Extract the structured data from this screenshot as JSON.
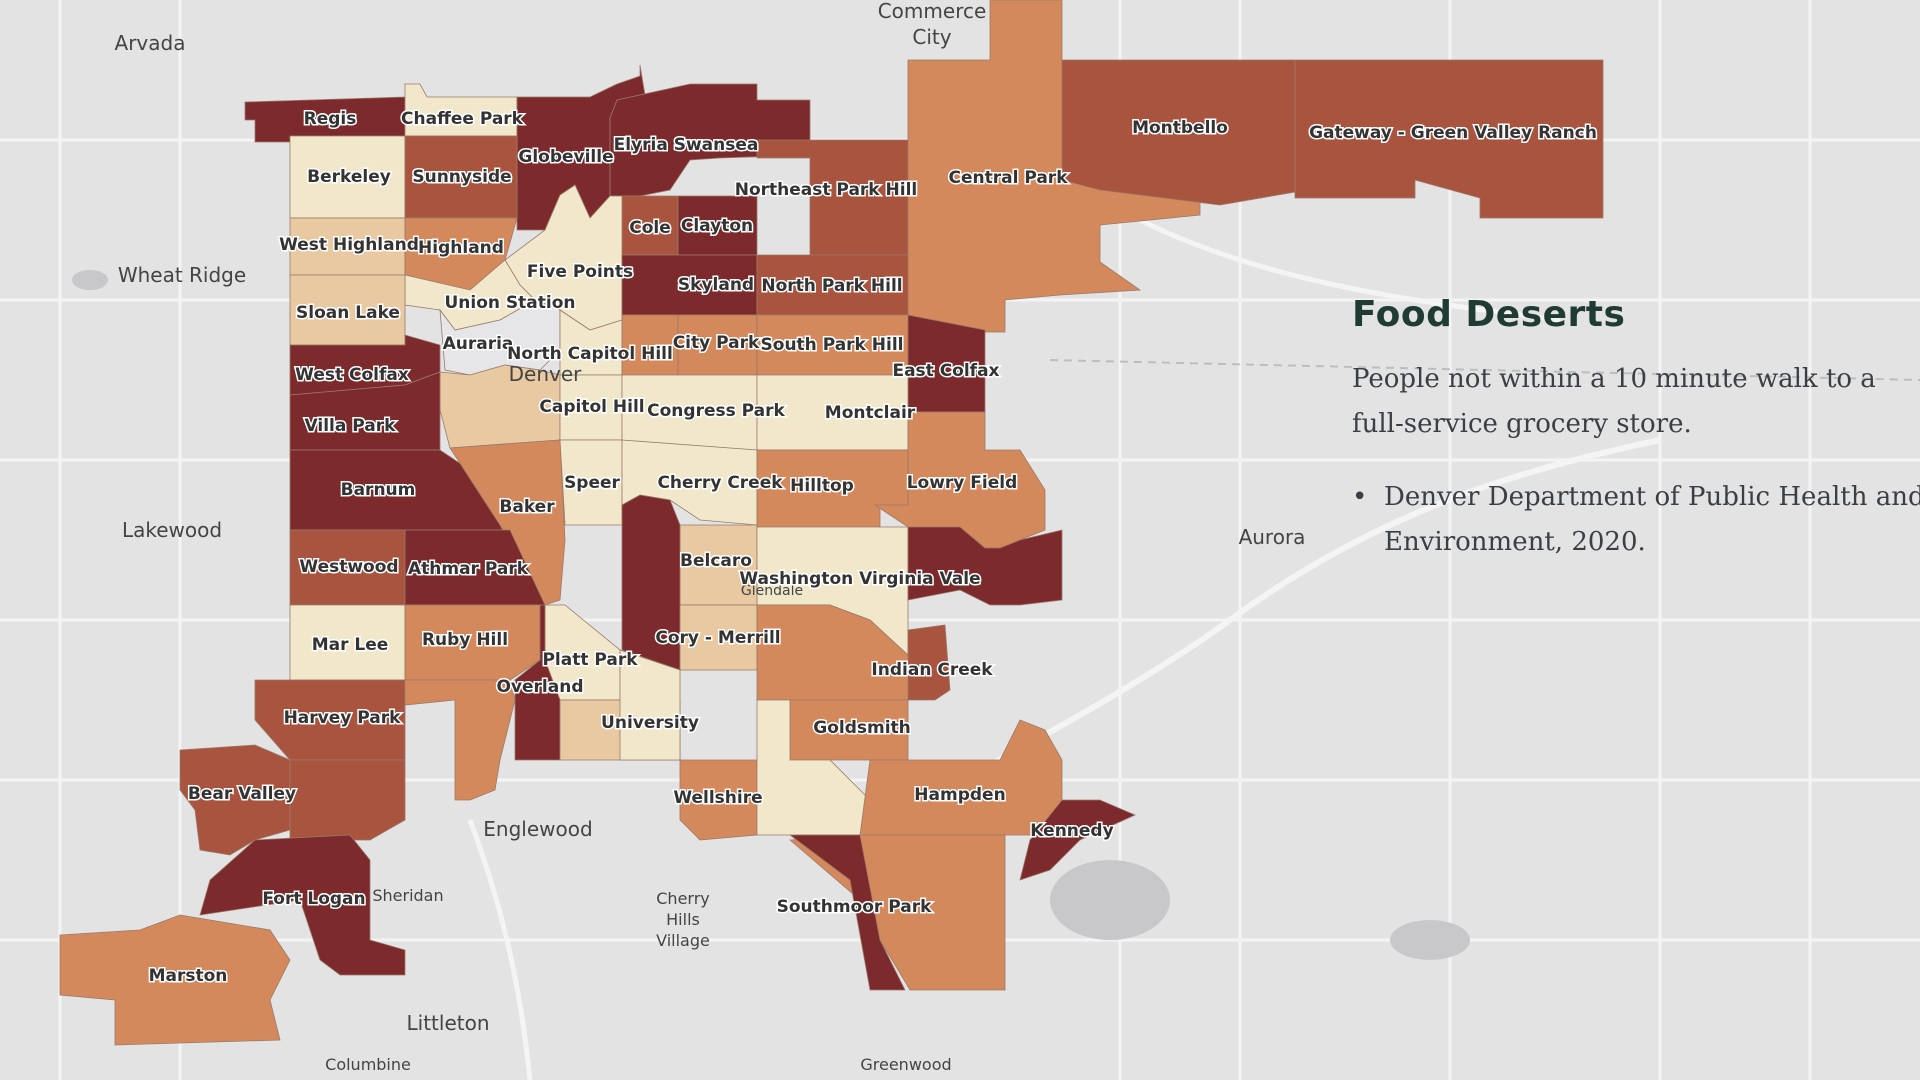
{
  "panel": {
    "title": "Food Deserts",
    "description": "People not within a 10 minute walk to a full-service grocery store.",
    "source_line1": "Denver Department of Public Health and",
    "source_line2": "Environment, 2020."
  },
  "colors": {
    "background": "#e3e3e4",
    "level1": "#f1e8cc",
    "level2": "#e8c9a2",
    "level3": "#d4895c",
    "level4": "#a9543f",
    "level5": "#7c2a2c",
    "no_data": "#e6e6e8"
  },
  "place_labels": [
    "Arvada",
    "Commerce",
    "City",
    "Wheat Ridge",
    "Lakewood",
    "Aurora",
    "Englewood",
    "Cherry",
    "Hills",
    "Village",
    "Sheridan",
    "Littleton",
    "Columbine",
    "Greenwood",
    "Glendale",
    "Denver"
  ],
  "neighborhoods": [
    {
      "name": "Regis",
      "level": 5
    },
    {
      "name": "Chaffee Park",
      "level": 1
    },
    {
      "name": "Globeville",
      "level": 5
    },
    {
      "name": "Elyria Swansea",
      "level": 5
    },
    {
      "name": "Northeast Park Hill",
      "level": 4
    },
    {
      "name": "Central Park",
      "level": 3
    },
    {
      "name": "Montbello",
      "level": 4
    },
    {
      "name": "Gateway - Green Valley Ranch",
      "level": 4
    },
    {
      "name": "Berkeley",
      "level": 1
    },
    {
      "name": "Sunnyside",
      "level": 4
    },
    {
      "name": "Cole",
      "level": 4
    },
    {
      "name": "Clayton",
      "level": 5
    },
    {
      "name": "West Highland",
      "level": 2
    },
    {
      "name": "Highland",
      "level": 3
    },
    {
      "name": "Five Points",
      "level": 1
    },
    {
      "name": "Skyland",
      "level": 5
    },
    {
      "name": "North Park Hill",
      "level": 4
    },
    {
      "name": "Union Station",
      "level": 1
    },
    {
      "name": "Sloan Lake",
      "level": 2
    },
    {
      "name": "Auraria",
      "level": 0
    },
    {
      "name": "North Capitol Hill",
      "level": 1
    },
    {
      "name": "City Park",
      "level": 3
    },
    {
      "name": "South Park Hill",
      "level": 3
    },
    {
      "name": "East Colfax",
      "level": 5
    },
    {
      "name": "West Colfax",
      "level": 5
    },
    {
      "name": "Capitol Hill",
      "level": 2
    },
    {
      "name": "Congress Park",
      "level": 1
    },
    {
      "name": "Montclair",
      "level": 1
    },
    {
      "name": "Villa Park",
      "level": 5
    },
    {
      "name": "Barnum",
      "level": 5
    },
    {
      "name": "Baker",
      "level": 3
    },
    {
      "name": "Speer",
      "level": 1
    },
    {
      "name": "Cherry Creek",
      "level": 1
    },
    {
      "name": "Hilltop",
      "level": 3
    },
    {
      "name": "Lowry Field",
      "level": 3
    },
    {
      "name": "Westwood",
      "level": 4
    },
    {
      "name": "Athmar Park",
      "level": 5
    },
    {
      "name": "Belcaro",
      "level": 2
    },
    {
      "name": "Washington Virginia Vale",
      "level": 1
    },
    {
      "name": "Mar Lee",
      "level": 1
    },
    {
      "name": "Ruby Hill",
      "level": 3
    },
    {
      "name": "Cory - Merrill",
      "level": 2
    },
    {
      "name": "Platt Park",
      "level": 1
    },
    {
      "name": "Overland",
      "level": 5
    },
    {
      "name": "Indian Creek",
      "level": 4
    },
    {
      "name": "Harvey Park",
      "level": 4
    },
    {
      "name": "University",
      "level": 2
    },
    {
      "name": "Goldsmith",
      "level": 3
    },
    {
      "name": "Bear Valley",
      "level": 4
    },
    {
      "name": "Wellshire",
      "level": 3
    },
    {
      "name": "Hampden",
      "level": 3
    },
    {
      "name": "Kennedy",
      "level": 5
    },
    {
      "name": "Fort Logan",
      "level": 5
    },
    {
      "name": "Southmoor Park",
      "level": 3
    },
    {
      "name": "Marston",
      "level": 3
    }
  ]
}
